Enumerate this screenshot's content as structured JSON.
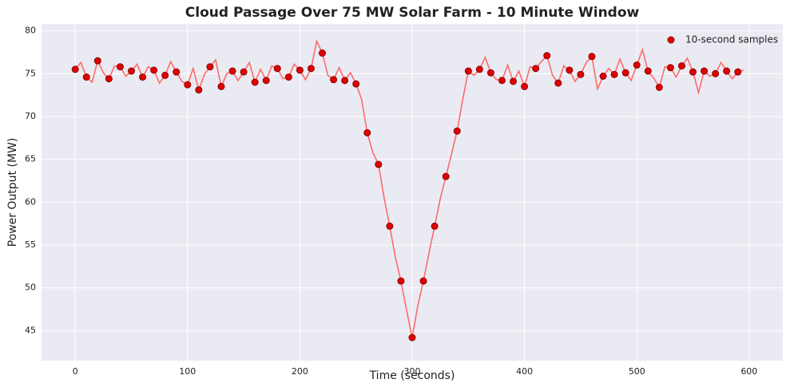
{
  "chart_data": {
    "type": "line",
    "title": "Cloud Passage Over 75 MW Solar Farm - 10 Minute Window",
    "x_label": "Time (seconds)",
    "y_label": "Power Output (MW)",
    "xlim": [
      -30,
      630
    ],
    "xticks": [
      0,
      100,
      200,
      300,
      400,
      500,
      600
    ],
    "ylim": [
      41.5,
      80.8
    ],
    "yticks": [
      45,
      50,
      55,
      60,
      65,
      70,
      75,
      80
    ],
    "grid": true,
    "legend": "upper right",
    "series": [
      {
        "type": "line",
        "color": "#ff6b6b",
        "x": [
          0,
          5,
          10,
          15,
          20,
          25,
          30,
          35,
          40,
          45,
          50,
          55,
          60,
          65,
          70,
          75,
          80,
          85,
          90,
          95,
          100,
          105,
          110,
          115,
          120,
          125,
          130,
          135,
          140,
          145,
          150,
          155,
          160,
          165,
          170,
          175,
          180,
          185,
          190,
          195,
          200,
          205,
          210,
          215,
          220,
          225,
          230,
          235,
          240,
          245,
          250,
          255,
          260,
          265,
          270,
          275,
          280,
          285,
          290,
          295,
          300,
          305,
          310,
          315,
          320,
          325,
          330,
          335,
          340,
          345,
          350,
          355,
          360,
          365,
          370,
          375,
          380,
          385,
          390,
          395,
          400,
          405,
          410,
          415,
          420,
          425,
          430,
          435,
          440,
          445,
          450,
          455,
          460,
          465,
          470,
          475,
          480,
          485,
          490,
          495,
          500,
          505,
          510,
          515,
          520,
          525,
          530,
          535,
          540,
          545,
          550,
          555,
          560,
          565,
          570,
          575,
          580,
          585,
          590,
          595
        ],
        "values": [
          75.5,
          76.3,
          74.6,
          74.0,
          76.5,
          75.1,
          74.4,
          75.9,
          75.8,
          74.7,
          75.3,
          76.1,
          74.6,
          75.8,
          75.4,
          73.9,
          74.8,
          76.4,
          75.2,
          74.1,
          73.7,
          75.6,
          73.1,
          74.9,
          75.8,
          76.6,
          73.5,
          75.0,
          75.3,
          74.2,
          75.2,
          76.3,
          74.0,
          75.5,
          74.2,
          75.9,
          75.6,
          74.4,
          74.6,
          76.1,
          75.4,
          74.3,
          75.6,
          78.8,
          77.4,
          74.8,
          74.3,
          75.7,
          74.2,
          75.1,
          73.8,
          72.0,
          68.1,
          65.8,
          64.4,
          60.5,
          57.2,
          53.6,
          50.8,
          47.4,
          44.2,
          47.9,
          50.8,
          54.1,
          57.2,
          60.4,
          63.0,
          65.6,
          68.3,
          72.0,
          75.3,
          74.8,
          75.5,
          76.9,
          75.1,
          74.3,
          74.2,
          76.0,
          74.1,
          75.3,
          73.5,
          75.8,
          75.6,
          76.4,
          77.1,
          74.8,
          73.9,
          75.9,
          75.4,
          74.1,
          74.9,
          76.3,
          77.0,
          73.2,
          74.7,
          75.6,
          74.9,
          76.7,
          75.1,
          74.2,
          76.0,
          77.8,
          75.3,
          74.5,
          73.4,
          75.8,
          75.7,
          74.6,
          75.9,
          76.8,
          75.2,
          72.8,
          75.3,
          74.7,
          75.0,
          76.3,
          75.3,
          74.4,
          75.2,
          75.4
        ]
      },
      {
        "type": "scatter",
        "name": "10-second samples",
        "color": "#e00000",
        "edge_color": "#8b0000",
        "x": [
          0,
          10,
          20,
          30,
          40,
          50,
          60,
          70,
          80,
          90,
          100,
          110,
          120,
          130,
          140,
          150,
          160,
          170,
          180,
          190,
          200,
          210,
          220,
          230,
          240,
          250,
          260,
          270,
          280,
          290,
          300,
          310,
          320,
          330,
          340,
          350,
          360,
          370,
          380,
          390,
          400,
          410,
          420,
          430,
          440,
          450,
          460,
          470,
          480,
          490,
          500,
          510,
          520,
          530,
          540,
          550,
          560,
          570,
          580,
          590
        ],
        "values": [
          75.5,
          74.6,
          76.5,
          74.4,
          75.8,
          75.3,
          74.6,
          75.4,
          74.8,
          75.2,
          73.7,
          73.1,
          75.8,
          73.5,
          75.3,
          75.2,
          74.0,
          74.2,
          75.6,
          74.6,
          75.4,
          75.6,
          77.4,
          74.3,
          74.2,
          73.8,
          68.1,
          64.4,
          57.2,
          50.8,
          44.2,
          50.8,
          57.2,
          63.0,
          68.3,
          75.3,
          75.5,
          75.1,
          74.2,
          74.1,
          73.5,
          75.6,
          77.1,
          73.9,
          75.4,
          74.9,
          77.0,
          74.7,
          74.9,
          75.1,
          76.0,
          75.3,
          73.4,
          75.7,
          75.9,
          75.2,
          75.3,
          75.0,
          75.3,
          75.2
        ]
      }
    ]
  }
}
